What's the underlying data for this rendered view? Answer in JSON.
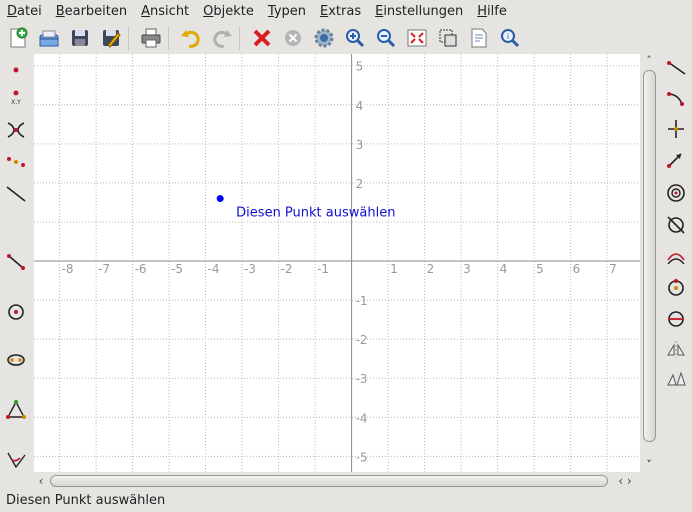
{
  "menu": [
    {
      "label": "Datei",
      "accel": "D",
      "rest": "atei"
    },
    {
      "label": "Bearbeiten",
      "accel": "B",
      "rest": "earbeiten"
    },
    {
      "label": "Ansicht",
      "accel": "A",
      "rest": "nsicht"
    },
    {
      "label": "Objekte",
      "accel": "O",
      "rest": "bjekte"
    },
    {
      "label": "Typen",
      "accel": "T",
      "rest": "ypen"
    },
    {
      "label": "Extras",
      "accel": "E",
      "rest": "xtras"
    },
    {
      "label": "Einstellungen",
      "accel": "E",
      "rest": "instellungen"
    },
    {
      "label": "Hilfe",
      "accel": "H",
      "rest": "ilfe"
    }
  ],
  "toolbar_icons": [
    "new-document-icon",
    "open-icon",
    "save-icon",
    "save-as-icon",
    "print-icon",
    "undo-icon",
    "redo-icon",
    "delete-icon",
    "cancel-icon",
    "settings-icon",
    "zoom-in-icon",
    "zoom-out-icon",
    "fit-to-screen-icon",
    "select-area-icon",
    "document-properties-icon",
    "find-icon"
  ],
  "colors": {
    "accent": "#1010d0",
    "grid": "#b8b8b8",
    "axis": "#888888",
    "label": "#999999",
    "point": "#0000ff"
  },
  "plot": {
    "x_ticks": [
      "-8",
      "-7",
      "-6",
      "-5",
      "-4",
      "-3",
      "-2",
      "-1",
      "1",
      "2",
      "3",
      "4",
      "5",
      "6",
      "7"
    ],
    "y_ticks_pos": [
      "5",
      "4",
      "3",
      "2"
    ],
    "y_ticks_neg": [
      "-1",
      "-2",
      "-3",
      "-4",
      "-5"
    ],
    "x_range": [
      -8.7,
      7.9
    ],
    "y_range": [
      -5.4,
      5.3
    ],
    "point": {
      "x": -3.6,
      "y": 1.6
    },
    "point_label": "Diesen Punkt auswählen"
  },
  "left_tools": [
    "point-icon",
    "point-by-coordinates-icon",
    "intersection-icon",
    "midpoint-icon",
    "line-icon",
    "segment-icon",
    "circle-icon",
    "conic-icon",
    "triangle-icon",
    "angle-icon"
  ],
  "right_tools": [
    "ray-icon",
    "arc-icon",
    "perpendicular-icon",
    "vector-icon",
    "concentric-circle-icon",
    "tangent-icon",
    "arc-three-points-icon",
    "circle-center-icon",
    "semicircle-icon",
    "reflection-icon",
    "transformation-icon"
  ],
  "status": {
    "text": "Diesen Punkt auswählen"
  }
}
